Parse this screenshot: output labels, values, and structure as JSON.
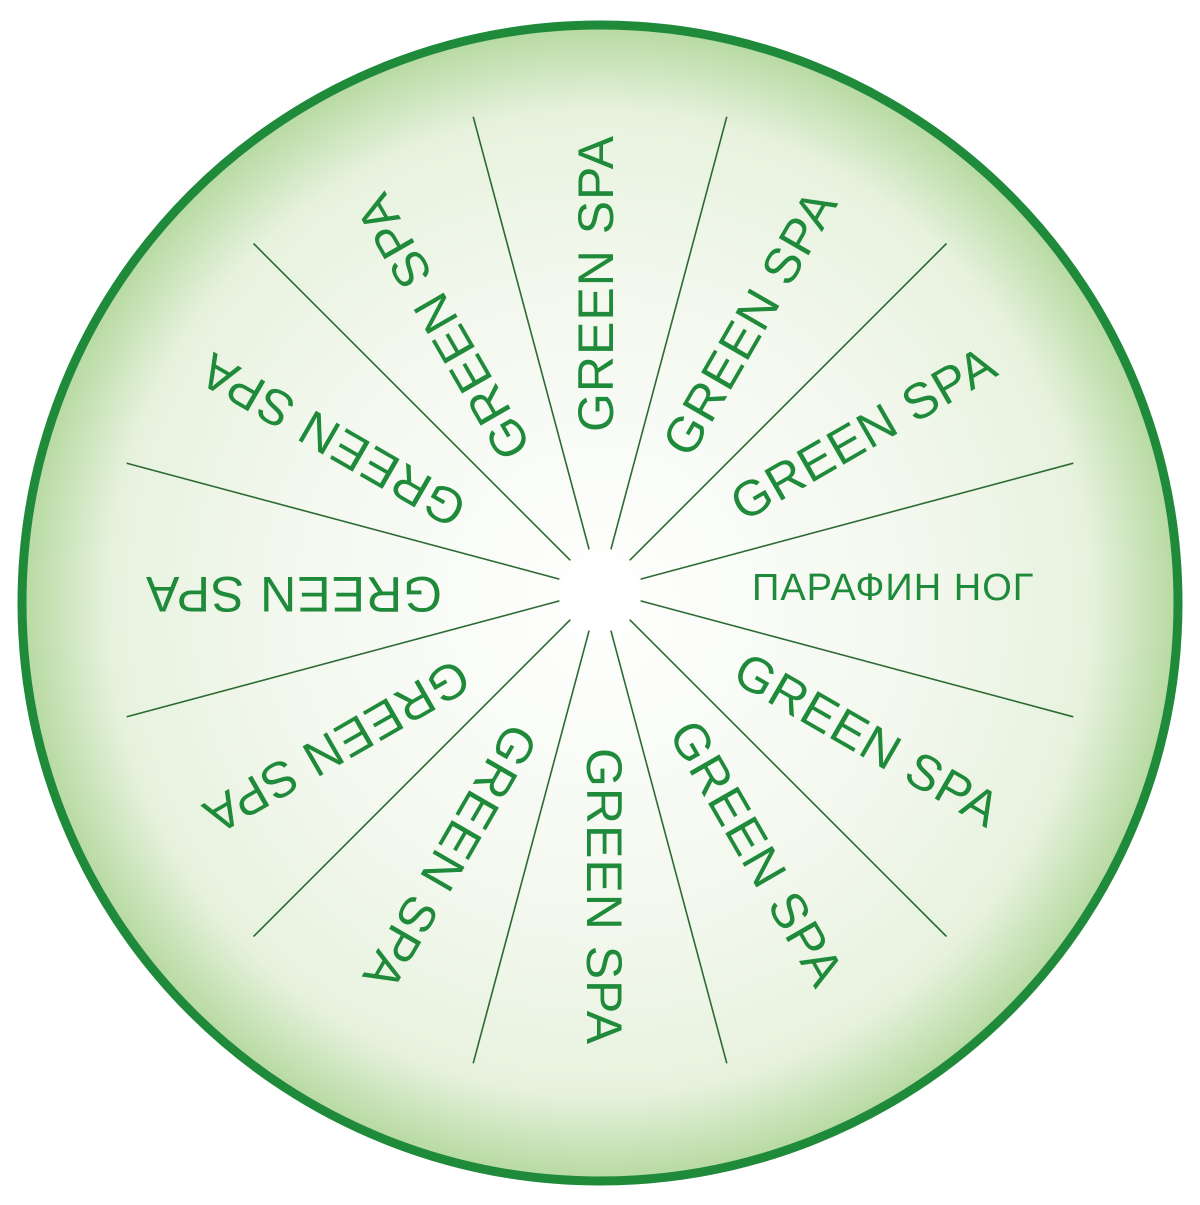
{
  "wheel": {
    "colors": {
      "rim": "#1e8a3a",
      "divider": "#2b6b33",
      "text": "#1e8a3a",
      "center": "#ffffff",
      "gradient_edge": "#b6d9a0",
      "gradient_mid": "#e7f2de"
    },
    "segments": [
      {
        "label": "ПАРАФИН НОГ"
      },
      {
        "label": "GREEN SPA"
      },
      {
        "label": "GREEN SPA"
      },
      {
        "label": "GREEN SPA"
      },
      {
        "label": "GREEN SPA"
      },
      {
        "label": "GREEN SPA"
      },
      {
        "label": "GREEN SPA"
      },
      {
        "label": "GREEN SPA"
      },
      {
        "label": "GREEN SPA"
      },
      {
        "label": "GREEN SPA"
      },
      {
        "label": "GREEN SPA"
      },
      {
        "label": "GREEN SPA"
      }
    ]
  }
}
